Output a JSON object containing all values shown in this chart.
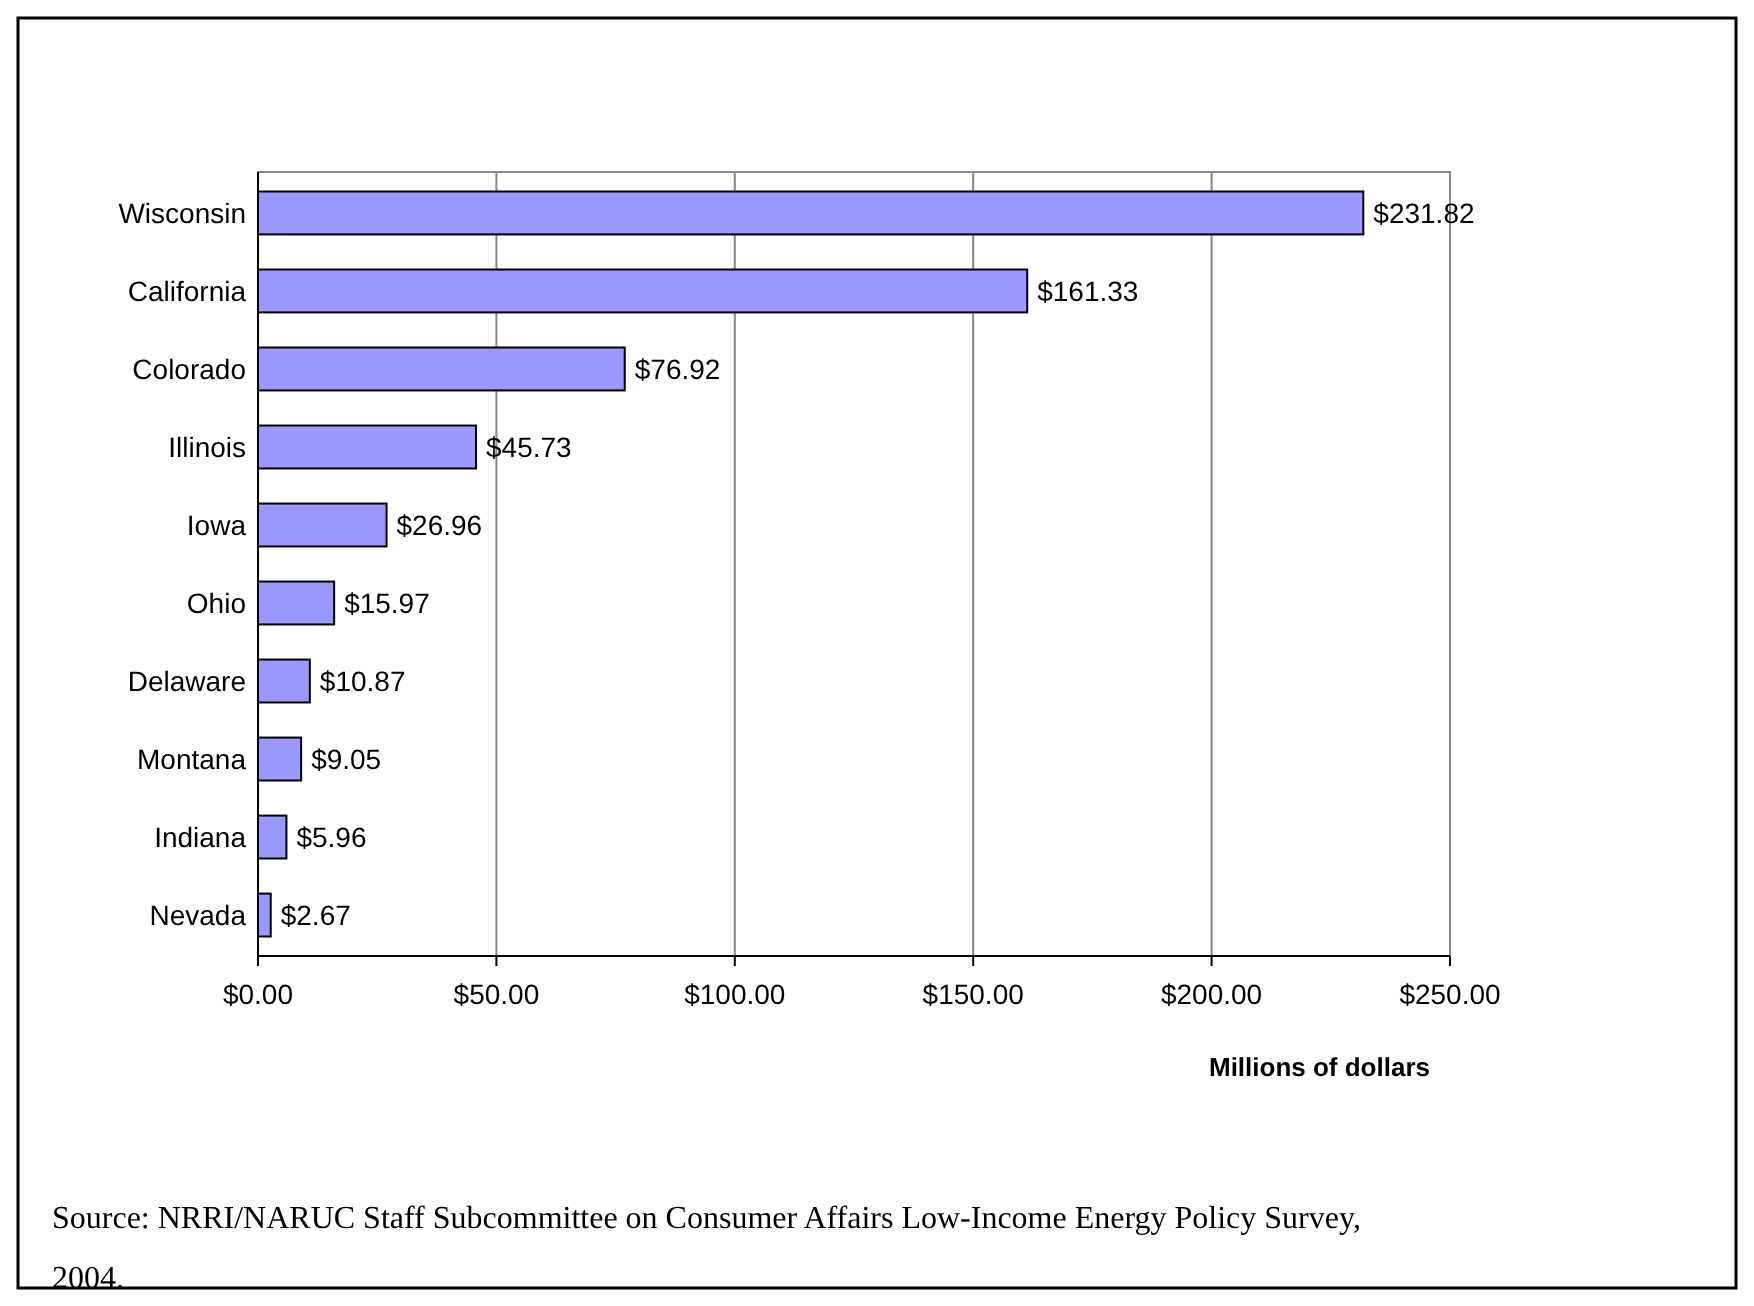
{
  "chart_data": {
    "type": "bar",
    "orientation": "horizontal",
    "xlabel": "Millions of dollars",
    "categories": [
      "Wisconsin",
      "California",
      "Colorado",
      "Illinois",
      "Iowa",
      "Ohio",
      "Delaware",
      "Montana",
      "Indiana",
      "Nevada"
    ],
    "values": [
      231.82,
      161.33,
      76.92,
      45.73,
      26.96,
      15.97,
      10.87,
      9.05,
      5.96,
      2.67
    ],
    "value_labels": [
      "$231.82",
      "$161.33",
      "$76.92",
      "$45.73",
      "$26.96",
      "$15.97",
      "$10.87",
      "$9.05",
      "$5.96",
      "$2.67"
    ],
    "color": "#9999ff",
    "xlim": [
      0,
      250
    ],
    "xticks": [
      {
        "value": 0,
        "label": "$0.00"
      },
      {
        "value": 50,
        "label": "$50.00"
      },
      {
        "value": 100,
        "label": "$100.00"
      },
      {
        "value": 150,
        "label": "$150.00"
      },
      {
        "value": 200,
        "label": "$200.00"
      },
      {
        "value": 250,
        "label": "$250.00"
      }
    ],
    "grid": "x",
    "annotations": [
      "Source: NRRI/NARUC Staff Subcommittee on Consumer Affairs Low-Income Energy Policy Survey, 2004."
    ]
  }
}
